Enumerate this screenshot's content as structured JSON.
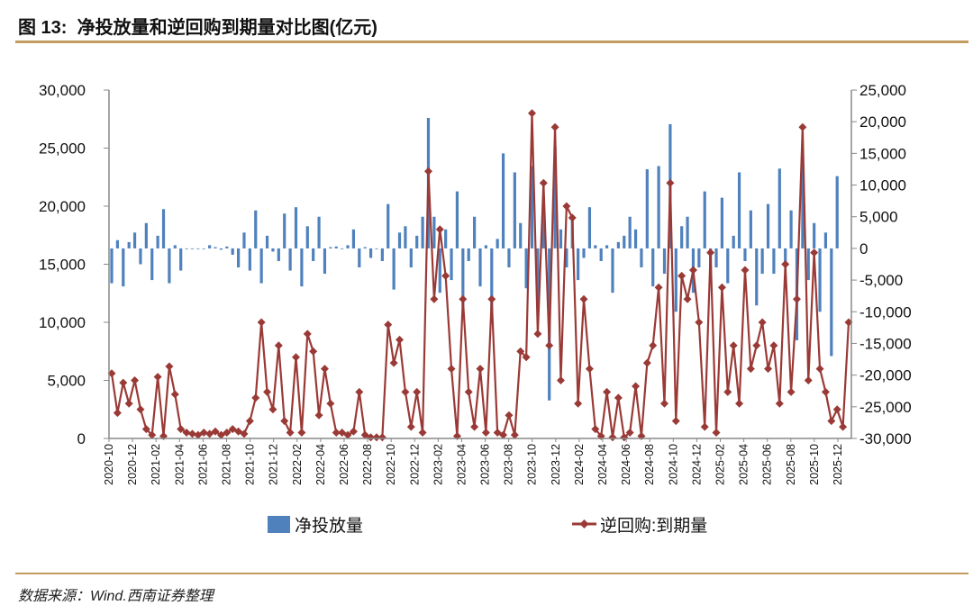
{
  "header": {
    "title": "图 13:  净投放量和逆回购到期量对比图(亿元)"
  },
  "footer": {
    "source": "数据来源：Wind.西南证券整理"
  },
  "colors": {
    "bars": "#4F81BD",
    "line": "#9A3A36",
    "rule": "#C29B5E"
  },
  "chart_data": {
    "type": "bar+line",
    "title": "净投放量和逆回购到期量对比图(亿元)",
    "x_tick_labels": [
      "2020-10",
      "2020-12",
      "2021-02",
      "2021-04",
      "2021-06",
      "2021-08",
      "2021-10",
      "2021-12",
      "2022-02",
      "2022-04",
      "2022-06",
      "2022-08",
      "2022-10",
      "2022-12",
      "2023-02",
      "2023-04",
      "2023-06",
      "2023-08",
      "2023-10",
      "2023-12",
      "2024-02",
      "2024-04",
      "2024-06",
      "2024-08",
      "2024-10",
      "2024-12",
      "2025-02",
      "2025-04",
      "2025-06",
      "2025-08",
      "2025-10",
      "2025-12"
    ],
    "x_range_note": "approx. half-monthly samples from 2020-10 to 2025-12",
    "left_axis": {
      "min": 0,
      "max": 30000,
      "step": 5000,
      "tick_labels": [
        "0",
        "5,000",
        "10,000",
        "15,000",
        "20,000",
        "25,000",
        "30,000"
      ]
    },
    "right_axis": {
      "min": -30000,
      "max": 25000,
      "step": 5000,
      "tick_labels": [
        "-30,000",
        "-25,000",
        "-20,000",
        "-15,000",
        "-10,000",
        "-5,000",
        "0",
        "5,000",
        "10,000",
        "15,000",
        "20,000",
        "25,000"
      ]
    },
    "legend": {
      "position": "bottom"
    },
    "series": [
      {
        "name": "净投放量",
        "type": "bar",
        "axis": "right",
        "values": [
          -5500,
          1300,
          -6000,
          1000,
          2500,
          -2500,
          4000,
          -5000,
          2000,
          6200,
          -5500,
          500,
          -3500,
          0,
          0,
          0,
          0,
          500,
          200,
          -200,
          300,
          -1000,
          -3000,
          2500,
          -3500,
          6000,
          -5500,
          2000,
          -500,
          -2000,
          5500,
          -3500,
          6500,
          -6000,
          3500,
          -2000,
          5000,
          -4000,
          200,
          300,
          0,
          500,
          3000,
          -3000,
          200,
          -1500,
          0,
          -2000,
          7000,
          -6500,
          2500,
          3500,
          -3000,
          2000,
          5000,
          20600,
          5000,
          -7000,
          3000,
          -5000,
          9000,
          -9000,
          -2000,
          5000,
          -6000,
          500,
          -11500,
          1500,
          15000,
          -3000,
          12000,
          4000,
          -6300,
          13000,
          -9000,
          8000,
          -24000,
          16000,
          3000,
          -3000,
          5000,
          -5000,
          -1500,
          6500,
          500,
          -2000,
          500,
          -7000,
          1000,
          2000,
          5000,
          3000,
          -3000,
          12500,
          -6000,
          13000,
          -4000,
          19600,
          -10000,
          3500,
          5000,
          -7000,
          -3000,
          9000,
          -5000,
          -3000,
          8000,
          -5500,
          2000,
          12000,
          -2000,
          6000,
          -9000,
          -4000,
          7000,
          -4000,
          12600,
          -3000,
          6000,
          -14500,
          14300,
          -5000,
          4000,
          -10000,
          2500,
          -17000,
          11400
        ]
      },
      {
        "name": "逆回购:到期量",
        "type": "line",
        "axis": "left",
        "values": [
          5600,
          2200,
          4800,
          3000,
          5000,
          2500,
          800,
          300,
          5300,
          200,
          6200,
          3800,
          800,
          500,
          400,
          300,
          500,
          400,
          600,
          300,
          500,
          800,
          600,
          400,
          1500,
          3500,
          10000,
          4000,
          2500,
          8000,
          1500,
          500,
          7000,
          500,
          9000,
          7500,
          2000,
          6000,
          3000,
          500,
          500,
          300,
          600,
          4000,
          300,
          100,
          100,
          100,
          9800,
          6500,
          8500,
          4000,
          1000,
          4000,
          500,
          23000,
          12000,
          18000,
          14000,
          6000,
          200,
          12000,
          4000,
          1000,
          6000,
          500,
          12000,
          500,
          300,
          2000,
          300,
          7500,
          7000,
          28000,
          9000,
          22000,
          8000,
          26800,
          5000,
          20000,
          19000,
          3000,
          12000,
          6000,
          800,
          200,
          4000,
          100,
          3500,
          100,
          500,
          4500,
          200,
          6500,
          8000,
          13000,
          3000,
          22000,
          1500,
          14000,
          12000,
          14500,
          10000,
          1000,
          16000,
          500,
          13000,
          4000,
          8000,
          3000,
          14500,
          6000,
          8000,
          10000,
          6000,
          8000,
          3000,
          15000,
          4000,
          12000,
          26800,
          5000,
          16000,
          6000,
          4000,
          1500,
          2500,
          1000,
          10000
        ]
      }
    ]
  }
}
